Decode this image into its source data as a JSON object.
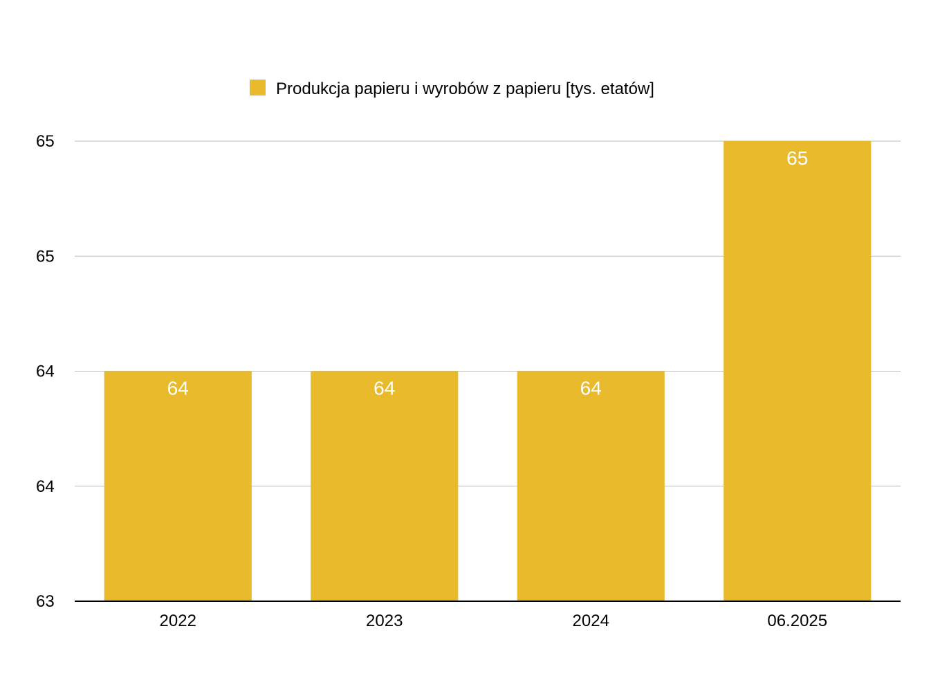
{
  "chart_data": {
    "type": "bar",
    "categories": [
      "2022",
      "2023",
      "2024",
      "06.2025"
    ],
    "series": [
      {
        "name": "Produkcja papieru i wyrobów z papieru [tys. etatów]",
        "values": [
          64.0,
          64.0,
          64.0,
          65.0
        ],
        "data_labels": [
          "64",
          "64",
          "64",
          "65"
        ]
      }
    ],
    "ylim": [
      63.0,
      65.0
    ],
    "y_ticks": [
      63.0,
      63.5,
      64.0,
      64.5,
      65.0
    ],
    "y_tick_labels": [
      "63",
      "64",
      "64",
      "65",
      "65"
    ],
    "grid": true,
    "legend": "top-center",
    "colors": {
      "bar": "#E8BA2C",
      "grid": "#BDBDBD",
      "axis": "#000000",
      "data_label": "#FFFFFF"
    }
  }
}
